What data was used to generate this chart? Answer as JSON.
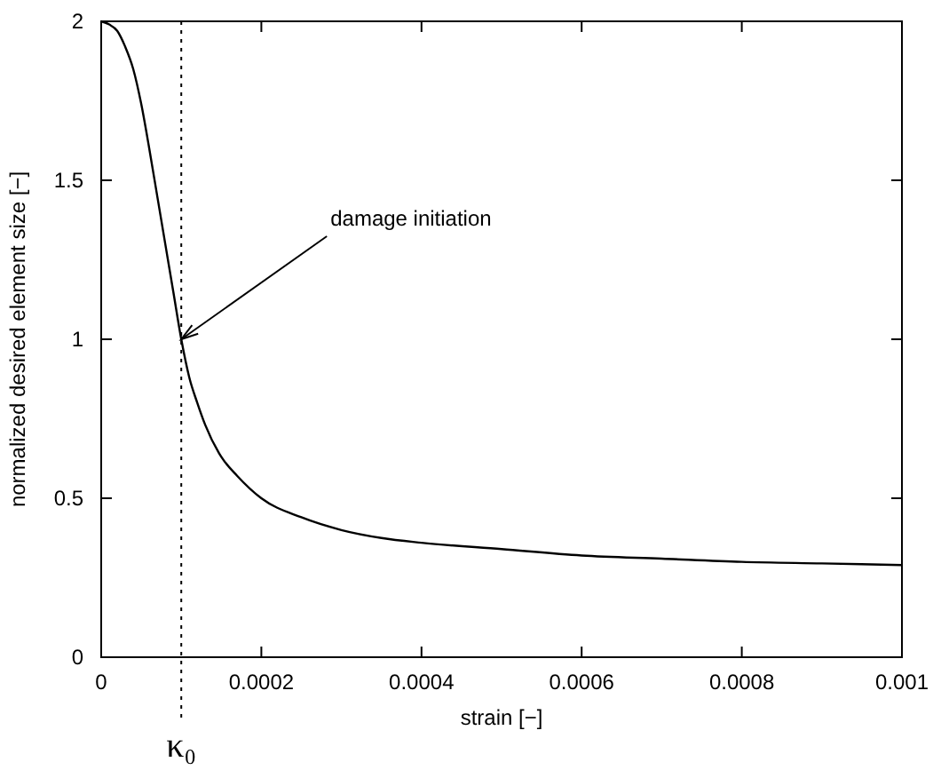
{
  "chart_data": {
    "type": "line",
    "xlabel": "strain [−]",
    "ylabel": "normalized desired element size [−]",
    "x": [
      0,
      1e-05,
      2e-05,
      3e-05,
      4e-05,
      5e-05,
      6e-05,
      7e-05,
      8e-05,
      9e-05,
      0.0001,
      0.00011,
      0.00012,
      0.00013,
      0.00015,
      0.00017,
      0.0002,
      0.00025,
      0.0003,
      0.00035,
      0.0004,
      0.0005,
      0.0006,
      0.0007,
      0.0008,
      0.0009,
      0.001
    ],
    "series": [
      {
        "color": "#000000",
        "values": [
          2,
          1.99,
          1.97,
          1.92,
          1.85,
          1.74,
          1.6,
          1.45,
          1.3,
          1.15,
          1,
          0.88,
          0.8,
          0.73,
          0.63,
          0.57,
          0.5,
          0.44,
          0.4,
          0.375,
          0.36,
          0.34,
          0.32,
          0.31,
          0.3,
          0.295,
          0.29
        ]
      }
    ],
    "xlim": [
      0,
      0.001
    ],
    "xticks": [
      0,
      0.0002,
      0.0004,
      0.0006,
      0.0008,
      0.001
    ],
    "ylim": [
      0,
      2
    ],
    "yticks": [
      0,
      0.5,
      1,
      1.5,
      2
    ],
    "ref_lines": [
      {
        "axis": "x",
        "value": 0.0001,
        "label": "κ₀",
        "line_style": "dotted",
        "color": "#000000"
      }
    ],
    "annotations": [
      {
        "text": "damage initiation",
        "x": 0.0001,
        "y": 1
      }
    ],
    "grid": false,
    "line_style": "solid",
    "marker": "none"
  }
}
